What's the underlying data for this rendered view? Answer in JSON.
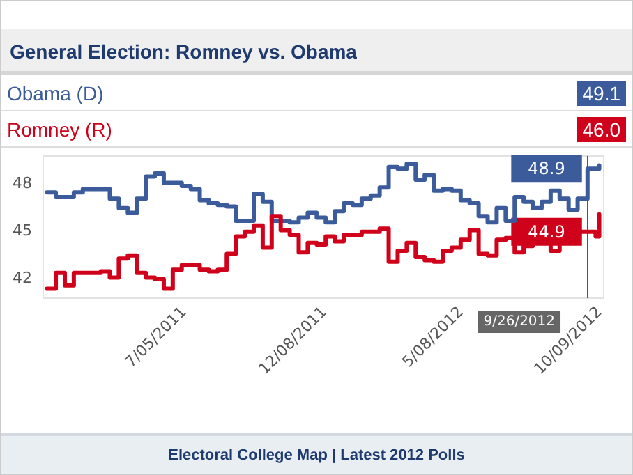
{
  "chart_data": {
    "type": "step",
    "title": "General Election: Romney vs. Obama",
    "x": [
      "2011-02-03",
      "2011-02-13",
      "2011-02-23",
      "2011-03-05",
      "2011-03-15",
      "2011-03-25",
      "2011-04-04",
      "2011-04-14",
      "2011-04-24",
      "2011-05-04",
      "2011-05-14",
      "2011-05-24",
      "2011-06-03",
      "2011-06-13",
      "2011-06-23",
      "2011-07-03",
      "2011-07-13",
      "2011-07-23",
      "2011-08-02",
      "2011-08-12",
      "2011-08-22",
      "2011-09-01",
      "2011-09-11",
      "2011-09-21",
      "2011-10-01",
      "2011-10-11",
      "2011-10-21",
      "2011-10-31",
      "2011-11-10",
      "2011-11-20",
      "2011-11-30",
      "2011-12-10",
      "2011-12-20",
      "2011-12-30",
      "2012-01-09",
      "2012-01-19",
      "2012-01-29",
      "2012-02-08",
      "2012-02-18",
      "2012-02-28",
      "2012-03-09",
      "2012-03-19",
      "2012-03-29",
      "2012-04-08",
      "2012-04-18",
      "2012-04-28",
      "2012-05-08",
      "2012-05-18",
      "2012-05-28",
      "2012-06-07",
      "2012-06-17",
      "2012-06-27",
      "2012-07-07",
      "2012-07-17",
      "2012-07-27",
      "2012-08-06",
      "2012-08-16",
      "2012-08-26",
      "2012-09-05",
      "2012-09-15",
      "2012-09-26",
      "2012-10-05",
      "2012-10-09"
    ],
    "series": [
      {
        "name": "Obama (D)",
        "color": "#3b5b9b",
        "values": [
          47.4,
          47.1,
          47.1,
          47.4,
          47.6,
          47.6,
          47.6,
          47.0,
          46.4,
          46.1,
          47.0,
          48.4,
          48.6,
          48.0,
          48.0,
          47.8,
          47.6,
          46.9,
          46.7,
          46.6,
          46.5,
          45.6,
          45.6,
          47.3,
          46.8,
          45.6,
          45.6,
          45.5,
          45.8,
          46.1,
          45.8,
          45.5,
          46.2,
          46.7,
          46.6,
          47.0,
          47.2,
          47.7,
          49.0,
          48.9,
          49.2,
          48.2,
          48.5,
          47.5,
          47.6,
          47.5,
          46.9,
          46.7,
          45.9,
          45.5,
          46.4,
          45.6,
          47.1,
          46.8,
          46.4,
          46.8,
          47.5,
          47.0,
          46.3,
          47.0,
          48.9,
          48.9,
          49.1
        ]
      },
      {
        "name": "Romney (R)",
        "color": "#d0021b",
        "values": [
          41.3,
          42.3,
          41.5,
          42.3,
          42.3,
          42.3,
          42.4,
          42.0,
          43.2,
          43.4,
          42.3,
          42.0,
          41.9,
          41.3,
          42.5,
          42.8,
          42.8,
          42.5,
          42.4,
          42.5,
          43.5,
          44.6,
          44.9,
          45.3,
          43.9,
          45.9,
          45.0,
          44.7,
          43.6,
          44.2,
          44.1,
          44.6,
          44.3,
          44.7,
          44.7,
          44.9,
          44.9,
          45.1,
          43.0,
          43.7,
          44.2,
          43.3,
          43.1,
          43.0,
          43.7,
          43.9,
          44.4,
          45.0,
          43.5,
          43.4,
          44.4,
          44.5,
          43.6,
          44.0,
          44.2,
          44.3,
          43.7,
          44.3,
          44.4,
          44.9,
          44.9,
          44.6,
          46.0
        ]
      }
    ],
    "xlim": [
      "2011-01-30",
      "2012-10-14"
    ],
    "xticks": [
      {
        "value": "2011-07-05",
        "label": "7/05/2011"
      },
      {
        "value": "2011-12-08",
        "label": "12/08/2011"
      },
      {
        "value": "2012-05-08",
        "label": "5/08/2012"
      },
      {
        "value": "2012-10-09",
        "label": "10/09/2012"
      }
    ],
    "ylim": [
      40.7,
      49.7
    ],
    "yticks": [
      42,
      45,
      48
    ],
    "grid": false,
    "legend": "top",
    "marker": "none",
    "line_style": "solid",
    "ref_lines": [
      {
        "axis": "x",
        "value": "2012-09-26",
        "label": "9/26/2012",
        "color": "#555555"
      }
    ],
    "annotations": [
      "49.1",
      "46.0",
      {
        "text": "48.9",
        "x": "2012-09-26",
        "y": 48.9
      },
      {
        "text": "44.9",
        "x": "2012-09-26",
        "y": 44.9
      },
      "Electoral College Map | Latest 2012 Polls"
    ]
  }
}
